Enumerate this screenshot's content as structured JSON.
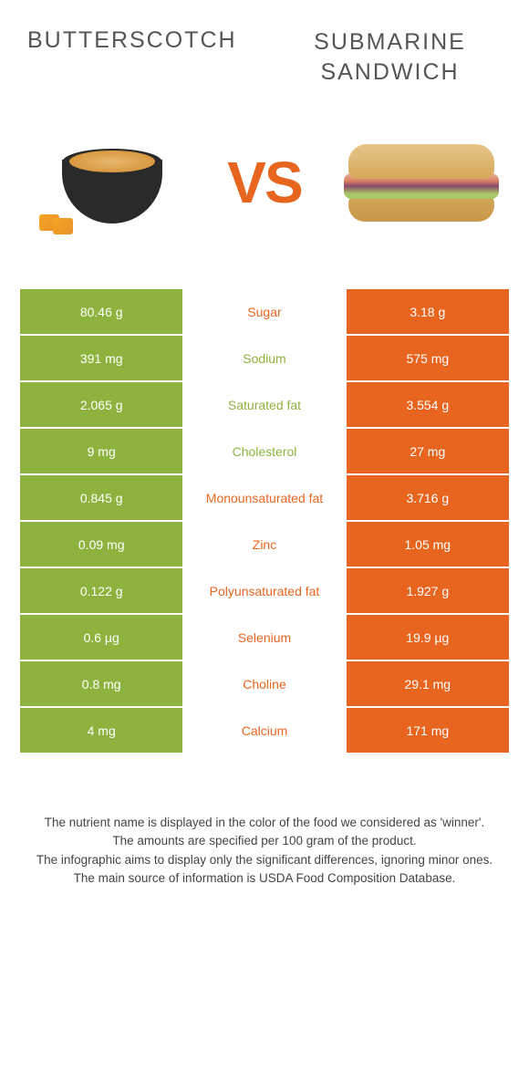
{
  "header": {
    "left_title": "BUTTERSCOTCH",
    "right_title": "SUBMARINE\nSANDWICH",
    "vs_text": "VS"
  },
  "colors": {
    "green": "#8db33e",
    "orange": "#e8651f",
    "text_dark": "#555555",
    "footer_text": "#444444",
    "background": "#ffffff"
  },
  "rows": [
    {
      "left": "80.46 g",
      "nutrient": "Sugar",
      "right": "3.18 g",
      "left_bg": "green",
      "right_bg": "orange",
      "nutrient_color": "orange"
    },
    {
      "left": "391 mg",
      "nutrient": "Sodium",
      "right": "575 mg",
      "left_bg": "green",
      "right_bg": "orange",
      "nutrient_color": "green"
    },
    {
      "left": "2.065 g",
      "nutrient": "Saturated fat",
      "right": "3.554 g",
      "left_bg": "green",
      "right_bg": "orange",
      "nutrient_color": "green"
    },
    {
      "left": "9 mg",
      "nutrient": "Cholesterol",
      "right": "27 mg",
      "left_bg": "green",
      "right_bg": "orange",
      "nutrient_color": "green"
    },
    {
      "left": "0.845 g",
      "nutrient": "Monounsaturated fat",
      "right": "3.716 g",
      "left_bg": "green",
      "right_bg": "orange",
      "nutrient_color": "orange"
    },
    {
      "left": "0.09 mg",
      "nutrient": "Zinc",
      "right": "1.05 mg",
      "left_bg": "green",
      "right_bg": "orange",
      "nutrient_color": "orange"
    },
    {
      "left": "0.122 g",
      "nutrient": "Polyunsaturated fat",
      "right": "1.927 g",
      "left_bg": "green",
      "right_bg": "orange",
      "nutrient_color": "orange"
    },
    {
      "left": "0.6 µg",
      "nutrient": "Selenium",
      "right": "19.9 µg",
      "left_bg": "green",
      "right_bg": "orange",
      "nutrient_color": "orange"
    },
    {
      "left": "0.8 mg",
      "nutrient": "Choline",
      "right": "29.1 mg",
      "left_bg": "green",
      "right_bg": "orange",
      "nutrient_color": "orange"
    },
    {
      "left": "4 mg",
      "nutrient": "Calcium",
      "right": "171 mg",
      "left_bg": "green",
      "right_bg": "orange",
      "nutrient_color": "orange"
    }
  ],
  "footer": {
    "line1": "The nutrient name is displayed in the color of the food we considered as 'winner'.",
    "line2": "The amounts are specified per 100 gram of the product.",
    "line3": "The infographic aims to display only the significant differences, ignoring minor ones.",
    "line4": "The main source of information is USDA Food Composition Database."
  }
}
